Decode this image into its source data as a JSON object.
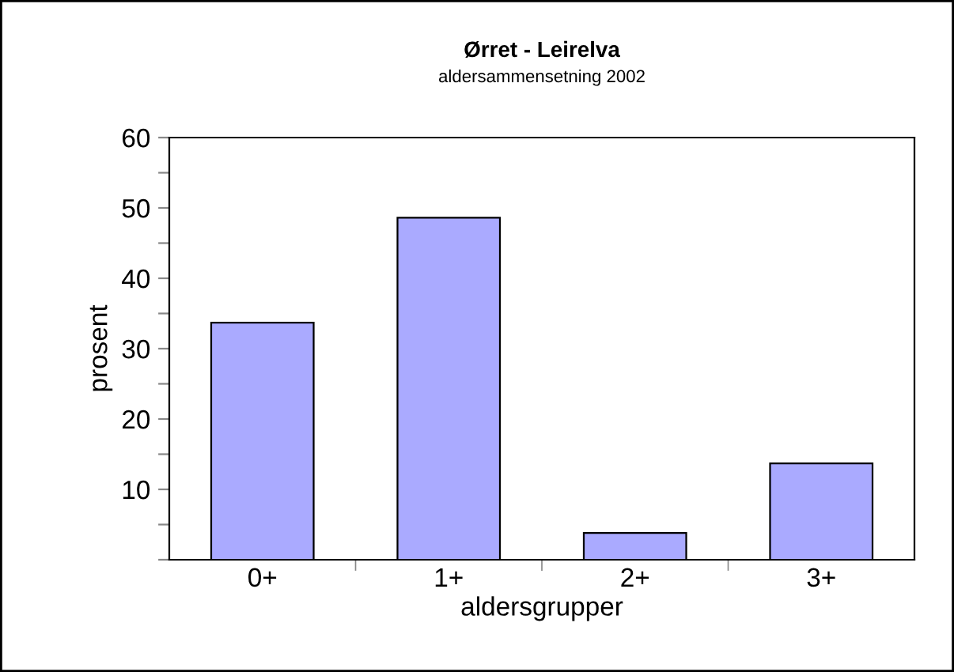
{
  "chart_data": {
    "type": "bar",
    "title": "Ørret - Leirelva",
    "subtitle": "aldersammensetning 2002",
    "xlabel": "aldersgrupper",
    "ylabel": "prosent",
    "categories": [
      "0+",
      "1+",
      "2+",
      "3+"
    ],
    "values": [
      33.7,
      48.6,
      3.8,
      13.7
    ],
    "color": "#aaaaff",
    "ylim": [
      0,
      60
    ],
    "yticks": [
      {
        "value": 0,
        "label": null
      },
      {
        "value": 5,
        "label": null
      },
      10,
      {
        "value": 15,
        "label": null
      },
      20,
      {
        "value": 25,
        "label": null
      },
      30,
      {
        "value": 35,
        "label": null
      },
      40,
      {
        "value": 45,
        "label": null
      },
      50,
      {
        "value": 55,
        "label": null
      },
      60
    ],
    "grid": false,
    "legend": false
  }
}
